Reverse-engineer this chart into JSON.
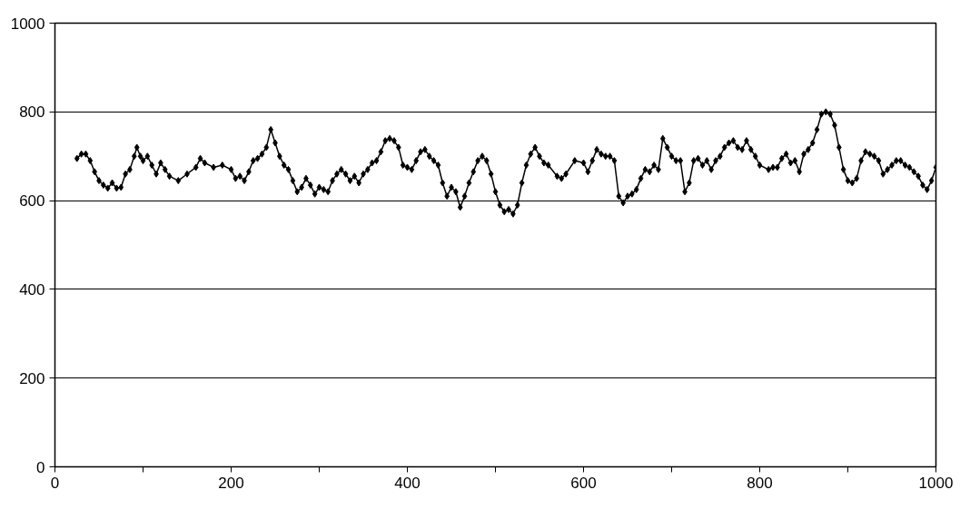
{
  "chart_data": {
    "type": "line",
    "marker": "diamond",
    "line_style": "solid",
    "grid": "y",
    "xlim": [
      0,
      1000
    ],
    "ylim": [
      0,
      1000
    ],
    "xticks": [
      0,
      {
        "value": 100,
        "label": null
      },
      200,
      {
        "value": 300,
        "label": null
      },
      400,
      {
        "value": 500,
        "label": null
      },
      600,
      {
        "value": 700,
        "label": null
      },
      800,
      {
        "value": 900,
        "label": null
      },
      1000
    ],
    "yticks": [
      0,
      200,
      400,
      600,
      800,
      1000
    ],
    "x": [
      25,
      30,
      35,
      40,
      45,
      50,
      55,
      60,
      65,
      70,
      75,
      80,
      85,
      90,
      93,
      97,
      100,
      105,
      110,
      115,
      120,
      125,
      130,
      140,
      150,
      160,
      165,
      170,
      180,
      190,
      200,
      205,
      210,
      215,
      220,
      225,
      230,
      235,
      240,
      245,
      250,
      255,
      260,
      265,
      270,
      275,
      280,
      285,
      290,
      295,
      300,
      305,
      310,
      315,
      320,
      325,
      330,
      335,
      340,
      345,
      350,
      355,
      360,
      365,
      370,
      375,
      380,
      385,
      390,
      395,
      400,
      405,
      410,
      415,
      420,
      425,
      430,
      435,
      440,
      445,
      450,
      455,
      460,
      465,
      470,
      475,
      480,
      485,
      490,
      495,
      500,
      505,
      510,
      515,
      520,
      525,
      530,
      535,
      540,
      545,
      550,
      555,
      560,
      570,
      575,
      580,
      590,
      600,
      605,
      610,
      615,
      620,
      625,
      630,
      635,
      640,
      645,
      650,
      655,
      660,
      665,
      670,
      675,
      680,
      685,
      690,
      695,
      700,
      705,
      710,
      715,
      720,
      725,
      730,
      735,
      740,
      745,
      750,
      755,
      760,
      765,
      770,
      775,
      780,
      785,
      790,
      795,
      800,
      810,
      815,
      820,
      825,
      830,
      835,
      840,
      845,
      850,
      855,
      860,
      865,
      870,
      875,
      880,
      885,
      890,
      895,
      900,
      905,
      910,
      915,
      920,
      925,
      930,
      935,
      940,
      945,
      950,
      955,
      960,
      965,
      970,
      975,
      980,
      985,
      990,
      995,
      1000
    ],
    "series": [
      {
        "color": "#000000",
        "values": [
          695,
          705,
          705,
          690,
          665,
          645,
          635,
          628,
          640,
          628,
          630,
          660,
          670,
          700,
          720,
          700,
          690,
          700,
          680,
          660,
          685,
          670,
          655,
          645,
          660,
          675,
          695,
          685,
          675,
          680,
          670,
          650,
          655,
          645,
          665,
          690,
          695,
          705,
          720,
          760,
          730,
          700,
          680,
          670,
          645,
          620,
          630,
          650,
          635,
          615,
          630,
          625,
          620,
          645,
          660,
          670,
          660,
          645,
          655,
          640,
          660,
          670,
          685,
          690,
          710,
          735,
          740,
          735,
          720,
          680,
          675,
          670,
          690,
          710,
          715,
          700,
          690,
          680,
          640,
          610,
          630,
          620,
          585,
          610,
          640,
          665,
          690,
          700,
          690,
          660,
          620,
          590,
          575,
          580,
          570,
          590,
          640,
          680,
          705,
          720,
          700,
          685,
          680,
          655,
          650,
          660,
          690,
          685,
          665,
          690,
          715,
          705,
          700,
          700,
          690,
          610,
          595,
          610,
          615,
          625,
          650,
          670,
          665,
          680,
          670,
          740,
          720,
          700,
          690,
          690,
          620,
          640,
          690,
          695,
          680,
          690,
          670,
          690,
          700,
          720,
          730,
          735,
          720,
          715,
          735,
          715,
          700,
          680,
          670,
          675,
          675,
          695,
          705,
          685,
          690,
          665,
          705,
          715,
          730,
          760,
          795,
          800,
          795,
          770,
          720,
          670,
          645,
          640,
          650,
          690,
          710,
          705,
          700,
          690,
          660,
          670,
          680,
          690,
          690,
          680,
          675,
          665,
          655,
          635,
          625,
          645,
          675
        ]
      }
    ]
  }
}
